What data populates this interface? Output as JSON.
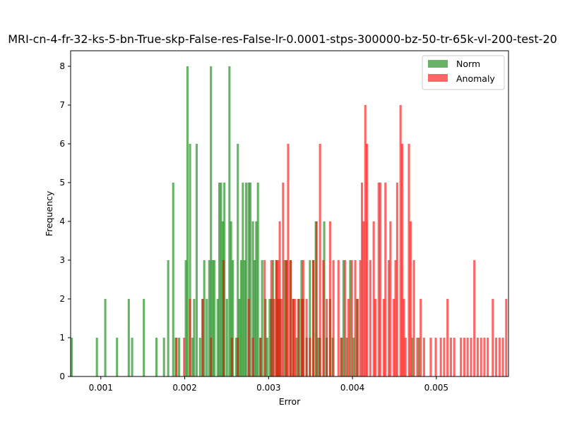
{
  "chart_data": {
    "type": "bar",
    "title": "MRI-cn-4-fr-32-ks-5-bn-True-skp-False-res-False-lr-0.0001-stps-300000-bz-50-tr-65k-vl-200-test-20",
    "xlabel": "Error",
    "ylabel": "Frequency",
    "xlim": [
      0.00064,
      0.00586
    ],
    "ylim": [
      0,
      8.4
    ],
    "xticks": [
      0.001,
      0.002,
      0.003,
      0.004,
      0.005
    ],
    "xtick_labels": [
      "0.001",
      "0.002",
      "0.003",
      "0.004",
      "0.005"
    ],
    "yticks": [
      0,
      1,
      2,
      3,
      4,
      5,
      6,
      7,
      8
    ],
    "ytick_labels": [
      "0",
      "1",
      "2",
      "3",
      "4",
      "5",
      "6",
      "7",
      "8"
    ],
    "grid": false,
    "legend_position": "upper right",
    "bin_width": 2.61e-05,
    "series": [
      {
        "name": "Norm",
        "color": "#008000",
        "opacity": 0.6,
        "bin_starts": [
          0.00064,
          0.00094,
          0.00104,
          0.00118,
          0.00132,
          0.00136,
          0.0015,
          0.00165,
          0.00174,
          0.00179,
          0.00185,
          0.00188,
          0.00192,
          0.002,
          0.00202,
          0.00205,
          0.00208,
          0.0021,
          0.00213,
          0.00217,
          0.0022,
          0.00222,
          0.00225,
          0.00228,
          0.0023,
          0.00232,
          0.00234,
          0.00238,
          0.0024,
          0.00242,
          0.00244,
          0.00246,
          0.00249,
          0.00252,
          0.00254,
          0.00256,
          0.0026,
          0.00262,
          0.00264,
          0.00266,
          0.00268,
          0.0027,
          0.00272,
          0.00275,
          0.00277,
          0.0028,
          0.00282,
          0.00284,
          0.00286,
          0.00289,
          0.00291,
          0.00295,
          0.00297,
          0.003,
          0.00302,
          0.00304,
          0.00308,
          0.0031,
          0.00312,
          0.00318,
          0.0032,
          0.00325,
          0.00328,
          0.00332,
          0.00335,
          0.00338,
          0.0034,
          0.00344,
          0.00348,
          0.00352,
          0.00355,
          0.00358,
          0.0036,
          0.00365,
          0.00368,
          0.00372,
          0.00375,
          0.00385,
          0.00388,
          0.00392,
          0.00396,
          0.004,
          0.00404,
          0.0047,
          0.00478
        ],
        "values": [
          1,
          1,
          2,
          1,
          2,
          1,
          2,
          1,
          1,
          3,
          5,
          1,
          1,
          3,
          8,
          6,
          1,
          2,
          6,
          1,
          2,
          3,
          2,
          3,
          8,
          3,
          3,
          2,
          5,
          5,
          4,
          5,
          2,
          8,
          4,
          3,
          1,
          6,
          2,
          3,
          5,
          3,
          5,
          5,
          5,
          4,
          3,
          4,
          5,
          1,
          3,
          2,
          1,
          2,
          2,
          3,
          3,
          2,
          2,
          3,
          3,
          3,
          2,
          1,
          2,
          3,
          2,
          1,
          3,
          3,
          4,
          1,
          1,
          4,
          1,
          2,
          1,
          1,
          3,
          1,
          3,
          1,
          2,
          1,
          1
        ]
      },
      {
        "name": "Anomaly",
        "color": "#ff0000",
        "opacity": 0.6,
        "bin_starts": [
          0.00189,
          0.00198,
          0.00205,
          0.0022,
          0.0023,
          0.00245,
          0.00255,
          0.00262,
          0.00275,
          0.0028,
          0.00289,
          0.00294,
          0.00302,
          0.00305,
          0.00308,
          0.0031,
          0.00312,
          0.00314,
          0.00316,
          0.0032,
          0.00322,
          0.00325,
          0.00328,
          0.0033,
          0.00334,
          0.00338,
          0.0034,
          0.00344,
          0.00348,
          0.00352,
          0.00356,
          0.0036,
          0.00364,
          0.00368,
          0.00372,
          0.00376,
          0.00382,
          0.00386,
          0.0039,
          0.00394,
          0.00398,
          0.00402,
          0.00405,
          0.00408,
          0.0041,
          0.00412,
          0.00414,
          0.00416,
          0.0042,
          0.00424,
          0.00426,
          0.0043,
          0.00432,
          0.00436,
          0.00438,
          0.00442,
          0.00444,
          0.00448,
          0.0045,
          0.00452,
          0.00456,
          0.00458,
          0.0046,
          0.00462,
          0.00466,
          0.00468,
          0.00472,
          0.00476,
          0.0048,
          0.00484,
          0.00492,
          0.00498,
          0.00504,
          0.00508,
          0.00512,
          0.00516,
          0.0052,
          0.00528,
          0.00532,
          0.00536,
          0.0054,
          0.00544,
          0.00548,
          0.00552,
          0.00556,
          0.0056,
          0.00566,
          0.0057,
          0.00574,
          0.00578,
          0.00582
        ],
        "values": [
          1,
          1,
          2,
          2,
          1,
          3,
          1,
          1,
          2,
          1,
          1,
          3,
          3,
          2,
          3,
          3,
          4,
          2,
          5,
          3,
          6,
          3,
          2,
          2,
          2,
          2,
          3,
          2,
          1,
          3,
          4,
          6,
          3,
          2,
          4,
          3,
          3,
          1,
          3,
          2,
          3,
          3,
          2,
          3,
          5,
          4,
          7,
          6,
          3,
          4,
          2,
          5,
          5,
          2,
          5,
          3,
          4,
          2,
          3,
          5,
          7,
          6,
          2,
          1,
          6,
          4,
          3,
          1,
          2,
          1,
          1,
          1,
          1,
          1,
          2,
          1,
          1,
          1,
          1,
          1,
          1,
          3,
          1,
          1,
          1,
          1,
          2,
          1,
          1,
          1,
          2
        ]
      }
    ]
  }
}
